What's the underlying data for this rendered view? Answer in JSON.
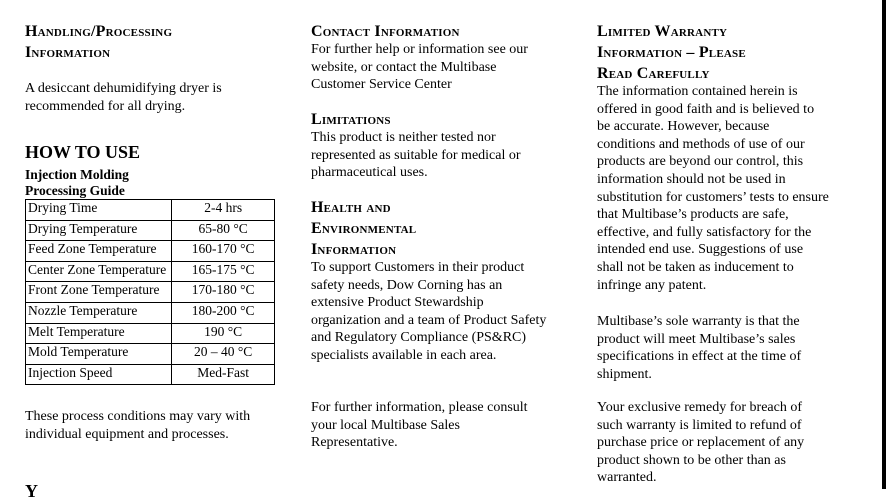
{
  "col1": {
    "heading": [
      "Handling/Processing",
      "Information"
    ],
    "intro": "A desiccant dehumidifying dryer is recommended for all drying.",
    "how_to_use": "HOW TO USE",
    "guide_title": [
      "Injection Molding",
      "Processing Guide"
    ],
    "table": [
      [
        "Drying Time",
        "2-4 hrs"
      ],
      [
        "Drying Temperature",
        "65-80 °C"
      ],
      [
        "Feed Zone Temperature",
        "160-170 °C"
      ],
      [
        "Center Zone Temperature",
        "165-175 °C"
      ],
      [
        "Front Zone Temperature",
        "170-180 °C"
      ],
      [
        "Nozzle Temperature",
        "180-200 °C"
      ],
      [
        "Melt Temperature",
        "190 °C"
      ],
      [
        "Mold Temperature",
        "20 – 40  °C"
      ],
      [
        "Injection Speed",
        "Med-Fast"
      ]
    ],
    "note": "These process conditions may vary with individual equipment and processes.",
    "cut_text": "Y"
  },
  "col2": {
    "contact_heading": "Contact Information",
    "contact_text": "For further help or information see our website, or contact the Multibase Customer Service Center",
    "limitations_heading": "Limitations",
    "limitations_text": "This product is neither tested nor represented as suitable for medical or pharmaceutical uses.",
    "health_heading": [
      "Health and",
      "Environmental",
      "Information"
    ],
    "health_text": "To support Customers in their product safety needs, Dow Corning has an extensive Product Stewardship organization and a team of Product Safety and Regulatory Compliance (PS&RC) specialists available in each area.",
    "further_text": "For further information, please consult your local Multibase Sales Representative."
  },
  "col3": {
    "heading": [
      "Limited Warranty",
      "Information – Please",
      "Read Carefully"
    ],
    "p1": "The information contained herein is offered in good faith and is believed to be accurate.  However, because conditions and methods of use of our products are beyond our control, this information should not be used in substitution for customers’ tests to ensure that Multibase’s products are safe, effective, and fully satisfactory for the intended end use. Suggestions of use shall not be taken as inducement to infringe any patent.",
    "p2": "Multibase’s sole warranty is that the product will meet Multibase’s sales specifications in effect at the time of shipment.",
    "p3": "Your exclusive remedy for breach of such warranty is limited to refund of purchase price or replacement of any product shown to be other than as warranted."
  }
}
